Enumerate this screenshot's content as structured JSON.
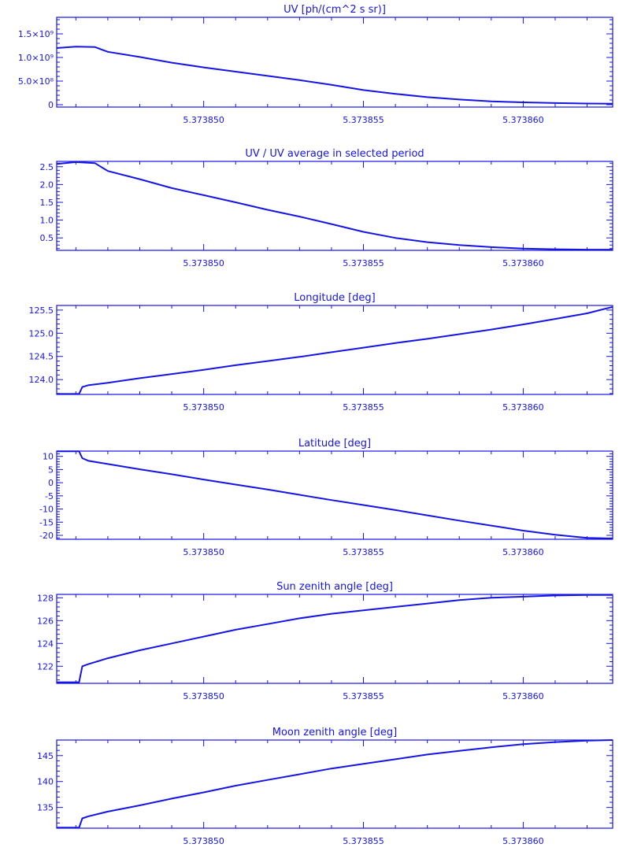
{
  "chart_data": [
    {
      "type": "line",
      "title": "UV [ph/(cm^2 s sr)]",
      "xlim": [
        5.3738454,
        5.3738628
      ],
      "ylim": [
        -50000000,
        1850000000
      ],
      "yticks": [
        0,
        500000000,
        1000000000,
        1500000000
      ],
      "yticklabels": [
        "0",
        "5.0×10⁸",
        "1.0×10⁹",
        "1.5×10⁹"
      ],
      "xticks": [
        5.37385,
        5.373855,
        5.37386
      ],
      "xticklabels": [
        "5.373850",
        "5.373855",
        "5.373860"
      ],
      "x": [
        5.3738454,
        5.373846,
        5.3738466,
        5.373847,
        5.373848,
        5.373849,
        5.37385,
        5.373851,
        5.373852,
        5.373853,
        5.373854,
        5.373855,
        5.373856,
        5.373857,
        5.373858,
        5.373859,
        5.37386,
        5.373861,
        5.373862,
        5.3738628
      ],
      "y": [
        1200000000,
        1230000000,
        1220000000,
        1120000000,
        1010000000,
        890000000,
        790000000,
        700000000,
        610000000,
        520000000,
        420000000,
        310000000,
        230000000,
        160000000,
        110000000,
        70000000,
        50000000,
        35000000,
        25000000,
        20000000
      ]
    },
    {
      "type": "line",
      "title": "UV / UV average in selected period",
      "xlim": [
        5.3738454,
        5.3738628
      ],
      "ylim": [
        0.15,
        2.65
      ],
      "yticks": [
        0.5,
        1.0,
        1.5,
        2.0,
        2.5
      ],
      "yticklabels": [
        "0.5",
        "1.0",
        "1.5",
        "2.0",
        "2.5"
      ],
      "xticks": [
        5.37385,
        5.373855,
        5.37386
      ],
      "xticklabels": [
        "5.373850",
        "5.373855",
        "5.373860"
      ],
      "x": [
        5.3738454,
        5.373846,
        5.3738466,
        5.373847,
        5.373848,
        5.373849,
        5.37385,
        5.373851,
        5.373852,
        5.373853,
        5.373854,
        5.373855,
        5.373856,
        5.373857,
        5.373858,
        5.373859,
        5.37386,
        5.373861,
        5.373862,
        5.3738628
      ],
      "y": [
        2.58,
        2.63,
        2.6,
        2.38,
        2.15,
        1.9,
        1.7,
        1.5,
        1.29,
        1.1,
        0.89,
        0.67,
        0.5,
        0.38,
        0.3,
        0.24,
        0.2,
        0.18,
        0.17,
        0.17
      ]
    },
    {
      "type": "line",
      "title": "Longitude [deg]",
      "xlim": [
        5.3738454,
        5.3738628
      ],
      "ylim": [
        123.68,
        125.6
      ],
      "yticks": [
        124.0,
        124.5,
        125.0,
        125.5
      ],
      "yticklabels": [
        "124.0",
        "124.5",
        "125.0",
        "125.5"
      ],
      "xticks": [
        5.37385,
        5.373855,
        5.37386
      ],
      "xticklabels": [
        "5.373850",
        "5.373855",
        "5.373860"
      ],
      "x": [
        5.3738454,
        5.3738461,
        5.3738462,
        5.3738464,
        5.373847,
        5.373848,
        5.373849,
        5.37385,
        5.373851,
        5.373852,
        5.373853,
        5.373854,
        5.373855,
        5.373856,
        5.373857,
        5.373858,
        5.373859,
        5.37386,
        5.373861,
        5.373862,
        5.3738628
      ],
      "y": [
        123.69,
        123.69,
        123.84,
        123.88,
        123.93,
        124.03,
        124.12,
        124.21,
        124.31,
        124.4,
        124.49,
        124.59,
        124.69,
        124.79,
        124.88,
        124.98,
        125.08,
        125.19,
        125.31,
        125.43,
        125.57
      ]
    },
    {
      "type": "line",
      "title": "Latitude [deg]",
      "xlim": [
        5.3738454,
        5.3738628
      ],
      "ylim": [
        -21.5,
        12.0
      ],
      "yticks": [
        -20,
        -15,
        -10,
        -5,
        0,
        5,
        10
      ],
      "yticklabels": [
        "-20",
        "-15",
        "-10",
        "-5",
        "0",
        "5",
        "10"
      ],
      "xticks": [
        5.37385,
        5.373855,
        5.37386
      ],
      "xticklabels": [
        "5.373850",
        "5.373855",
        "5.373860"
      ],
      "x": [
        5.3738454,
        5.3738461,
        5.3738462,
        5.3738464,
        5.373847,
        5.373848,
        5.373849,
        5.37385,
        5.373851,
        5.373852,
        5.373853,
        5.373854,
        5.373855,
        5.373856,
        5.373857,
        5.373858,
        5.373859,
        5.37386,
        5.373861,
        5.373862,
        5.3738628
      ],
      "y": [
        11.9,
        11.9,
        9.3,
        8.3,
        7.1,
        5.1,
        3.2,
        1.2,
        -0.7,
        -2.6,
        -4.6,
        -6.6,
        -8.5,
        -10.4,
        -12.4,
        -14.4,
        -16.3,
        -18.2,
        -19.8,
        -21.0,
        -21.2
      ]
    },
    {
      "type": "line",
      "title": "Sun zenith angle [deg]",
      "xlim": [
        5.3738454,
        5.3738628
      ],
      "ylim": [
        120.5,
        128.3
      ],
      "yticks": [
        122,
        124,
        126,
        128
      ],
      "yticklabels": [
        "122",
        "124",
        "126",
        "128"
      ],
      "xticks": [
        5.37385,
        5.373855,
        5.37386
      ],
      "xticklabels": [
        "5.373850",
        "5.373855",
        "5.373860"
      ],
      "x": [
        5.3738454,
        5.3738461,
        5.3738462,
        5.3738464,
        5.373847,
        5.373848,
        5.373849,
        5.37385,
        5.373851,
        5.373852,
        5.373853,
        5.373854,
        5.373855,
        5.373856,
        5.373857,
        5.373858,
        5.373859,
        5.37386,
        5.373861,
        5.373862,
        5.3738628
      ],
      "y": [
        120.6,
        120.6,
        122.0,
        122.2,
        122.7,
        123.4,
        124.0,
        124.6,
        125.2,
        125.7,
        126.2,
        126.6,
        126.9,
        127.2,
        127.5,
        127.8,
        128.0,
        128.1,
        128.2,
        128.25,
        128.25
      ]
    },
    {
      "type": "line",
      "title": "Moon zenith angle [deg]",
      "xlim": [
        5.3738454,
        5.3738628
      ],
      "ylim": [
        131.0,
        148.0
      ],
      "yticks": [
        135,
        140,
        145
      ],
      "yticklabels": [
        "135",
        "140",
        "145"
      ],
      "xticks": [
        5.37385,
        5.373855,
        5.37386
      ],
      "xticklabels": [
        "5.373850",
        "5.373855",
        "5.373860"
      ],
      "x": [
        5.3738454,
        5.3738461,
        5.3738462,
        5.3738464,
        5.373847,
        5.373848,
        5.373849,
        5.37385,
        5.373851,
        5.373852,
        5.373853,
        5.373854,
        5.373855,
        5.373856,
        5.373857,
        5.373858,
        5.373859,
        5.37386,
        5.373861,
        5.373862,
        5.3738628
      ],
      "y": [
        131.1,
        131.1,
        132.9,
        133.3,
        134.2,
        135.4,
        136.7,
        137.9,
        139.2,
        140.3,
        141.4,
        142.5,
        143.4,
        144.3,
        145.2,
        145.9,
        146.6,
        147.2,
        147.6,
        147.9,
        148.0
      ]
    }
  ]
}
